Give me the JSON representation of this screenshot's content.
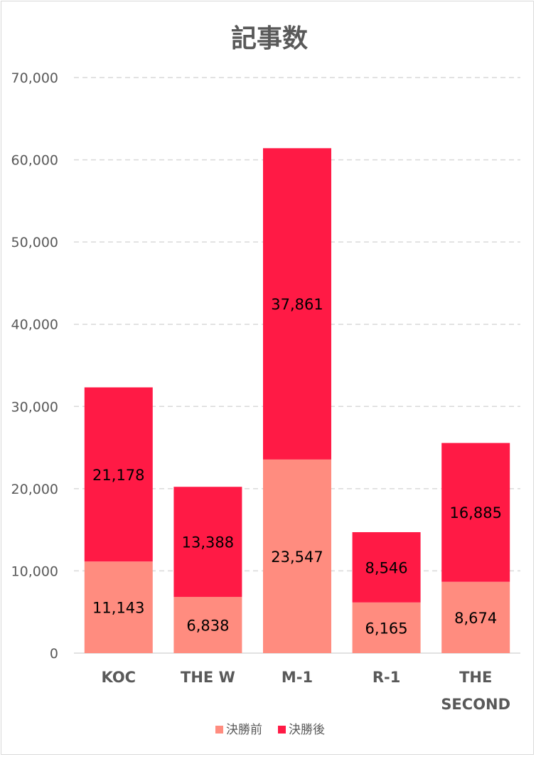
{
  "chart_data": {
    "type": "bar",
    "stacked": true,
    "title": "記事数",
    "categories": [
      [
        "KOC"
      ],
      [
        "THE W"
      ],
      [
        "M-1"
      ],
      [
        "R-1"
      ],
      [
        "THE",
        "SECOND"
      ]
    ],
    "series": [
      {
        "name": "決勝前",
        "color": "#ff8c7f",
        "values": [
          11143,
          6838,
          23547,
          6165,
          8674
        ],
        "labels": [
          "11,143",
          "6,838",
          "23,547",
          "6,165",
          "8,674"
        ]
      },
      {
        "name": "決勝後",
        "color": "#ff1a45",
        "values": [
          21178,
          13388,
          37861,
          8546,
          16885
        ],
        "labels": [
          "21,178",
          "13,388",
          "37,861",
          "8,546",
          "16,885"
        ]
      }
    ],
    "ylim": [
      0,
      70000
    ],
    "yticks": [
      0,
      10000,
      20000,
      30000,
      40000,
      50000,
      60000,
      70000
    ],
    "ytick_labels": [
      "0",
      "10,000",
      "20,000",
      "30,000",
      "40,000",
      "50,000",
      "60,000",
      "70,000"
    ],
    "grid": true,
    "legend": "bottom"
  }
}
